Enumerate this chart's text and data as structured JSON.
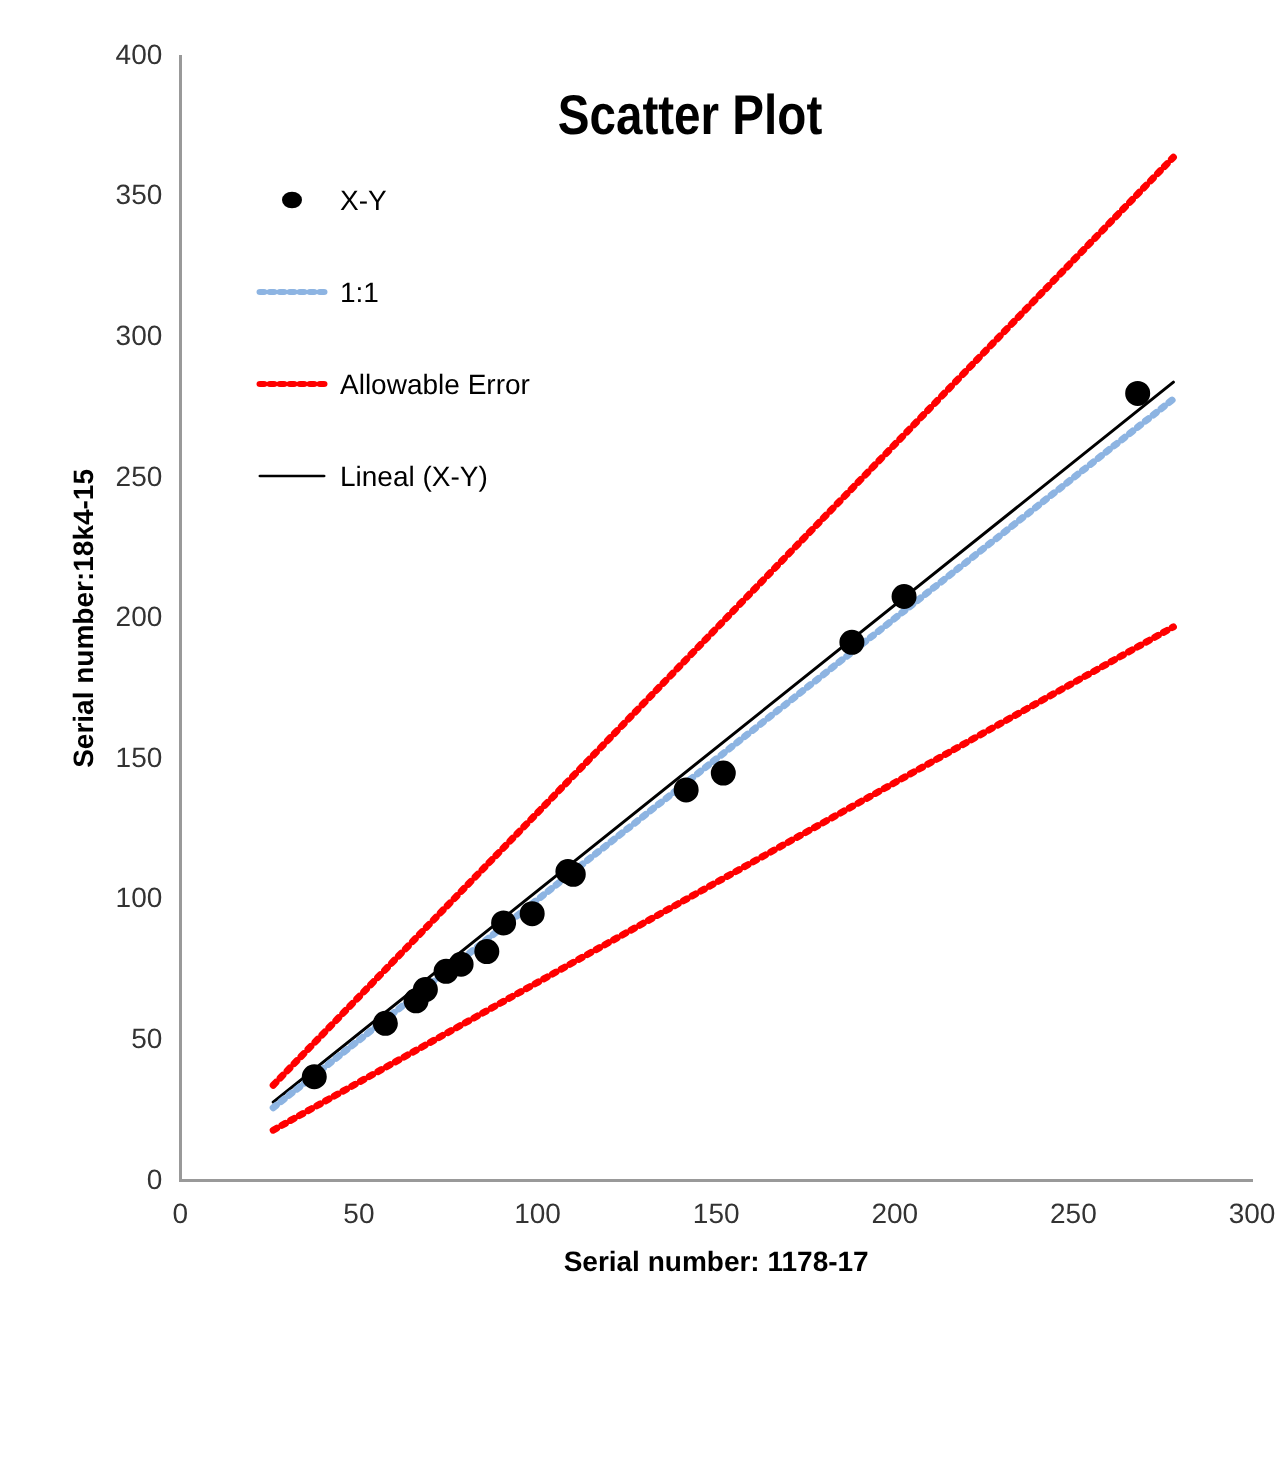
{
  "chart_data": {
    "type": "scatter",
    "title": "Scatter Plot",
    "xlabel": "Serial number: 1178-17",
    "ylabel": "Serial number:18k4-15",
    "xlim": [
      0,
      300
    ],
    "xticks": [
      0,
      50,
      100,
      150,
      200,
      250,
      300
    ],
    "ylim": [
      0,
      400
    ],
    "yticks": [
      0,
      50,
      100,
      150,
      200,
      250,
      300,
      350,
      400
    ],
    "grid": false,
    "legend": "top left",
    "series": [
      {
        "name": "X-Y",
        "type": "scatter",
        "marker": "circle",
        "color": "#000000",
        "x": [
          37.5,
          57.4,
          66,
          68.6,
          74.4,
          78.6,
          85.8,
          90.5,
          98.5,
          108.5,
          110,
          141.6,
          152,
          188,
          202.6,
          268
        ],
        "values": [
          37,
          56,
          64,
          68,
          74.5,
          77,
          81.5,
          91.7,
          95,
          110,
          109,
          139,
          145,
          191.5,
          207.8,
          280
        ]
      },
      {
        "name": "1:1",
        "type": "line",
        "marker": "none",
        "line_style": "dotted",
        "color": "#8db4e2",
        "x": [
          26,
          278
        ],
        "values": [
          26,
          278
        ]
      },
      {
        "name": "Allowable Error",
        "type": "line",
        "marker": "none",
        "line_style": "dotted",
        "color": "#ff0000",
        "x": [
          26,
          278
        ],
        "values": [
          34,
          364
        ]
      },
      {
        "type": "line",
        "marker": "none",
        "line_style": "dotted",
        "color": "#ff0000",
        "x": [
          26,
          278
        ],
        "values": [
          18,
          197
        ]
      },
      {
        "name": "Lineal (X-Y)",
        "type": "line",
        "marker": "none",
        "line_style": "solid",
        "color": "#000000",
        "x": [
          26,
          278
        ],
        "values": [
          28,
          284
        ]
      }
    ]
  }
}
